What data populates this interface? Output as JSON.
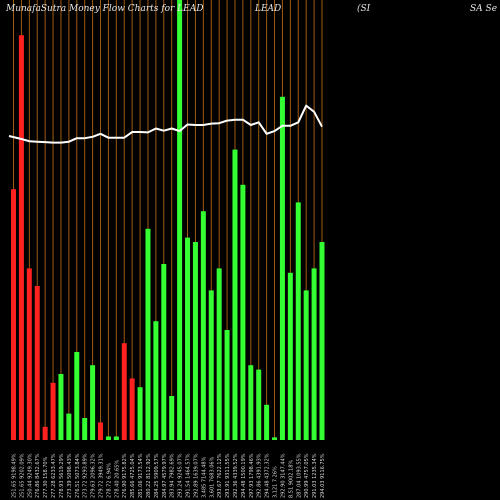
{
  "header": {
    "title": "MunafaSutra  Money Flow  Charts for LEAD",
    "ticker_mid": "LEAD",
    "ticker_sub": "(SI",
    "ticker_right": "SA Se"
  },
  "colors": {
    "background": "#000000",
    "inflow": "#33ff33",
    "outflow": "#ff2020",
    "gridline": "#a05a10",
    "price_line": "#ffffff"
  },
  "chart_data": {
    "type": "bar",
    "ylim": [
      0,
      100
    ],
    "price_ylim": [
      0,
      100
    ],
    "grid": true,
    "series": [
      {
        "values": [
          57,
          92,
          39,
          35,
          3,
          13,
          15,
          6,
          20,
          5,
          17,
          4,
          0.8,
          0.8,
          22,
          14,
          12,
          48,
          27,
          40,
          10,
          100,
          46,
          45,
          52,
          34,
          39,
          25,
          66,
          58,
          17,
          16,
          8,
          0.6,
          78,
          38,
          54,
          34,
          39,
          45
        ],
        "colors": [
          "red",
          "red",
          "red",
          "red",
          "red",
          "red",
          "green",
          "green",
          "green",
          "green",
          "green",
          "red",
          "green",
          "green",
          "red",
          "red",
          "green",
          "green",
          "green",
          "green",
          "green",
          "green",
          "green",
          "green",
          "green",
          "green",
          "green",
          "green",
          "green",
          "green",
          "green",
          "green",
          "green",
          "green",
          "green",
          "green",
          "green",
          "green",
          "green",
          "green"
        ]
      },
      {
        "kind": "line",
        "values": [
          69.1,
          68.4,
          67.9,
          67.8,
          67.7,
          67.6,
          67.6,
          67.8,
          68.6,
          68.6,
          68.9,
          69.6,
          68.7,
          68.7,
          68.7,
          70.0,
          70.0,
          69.9,
          70.8,
          70.3,
          70.8,
          70.2,
          71.7,
          71.6,
          71.6,
          71.9,
          72.0,
          72.6,
          72.8,
          72.8,
          71.6,
          72.2,
          69.6,
          70.2,
          71.4,
          71.4,
          72.2,
          76.0,
          74.6,
          71.2
        ]
      }
    ],
    "x_labels": [
      "251.65 9198.49%",
      "251.65 9202.09%",
      "250.44 9249.30%",
      "276.86 8432.67%",
      "277.30 158.70%",
      "277.28 6233.47%",
      "278.93 5619.29%",
      "273.39 5098.43%",
      "276.51 5073.84%",
      "273.72 9293.89%",
      "279.63 2096.32%",
      "279.72 3949.31%",
      "278.72 6.94%",
      "278.40 20.65%",
      "276.90 9175.82%",
      "285.66 4725.04%",
      "281.06 9173.54%",
      "280.22 8112.92%",
      "284.25 5909.57%",
      "284.97 4579.97%",
      "283.94 7982.69%",
      "293.24 9245.07%",
      "291.54 1464.57%",
      "292.89 1639.07%",
      "3,485 7144.48%",
      "3,601 7683.06%",
      "293.67 7622.12%",
      "293.91 9311.55%",
      "292.36 4339.52%",
      "294.48 1500.19%",
      "297.93 1798.46%",
      "292.86 4391.93%",
      "294.48 4372.32%",
      "3,121 7.26%",
      "292.90 3147.44%",
      "8.51 9002.18%",
      "287.04 1093.55%",
      "290.99 4757.05%",
      "291.03 1235.34%",
      "294.03 9116.75%"
    ]
  }
}
